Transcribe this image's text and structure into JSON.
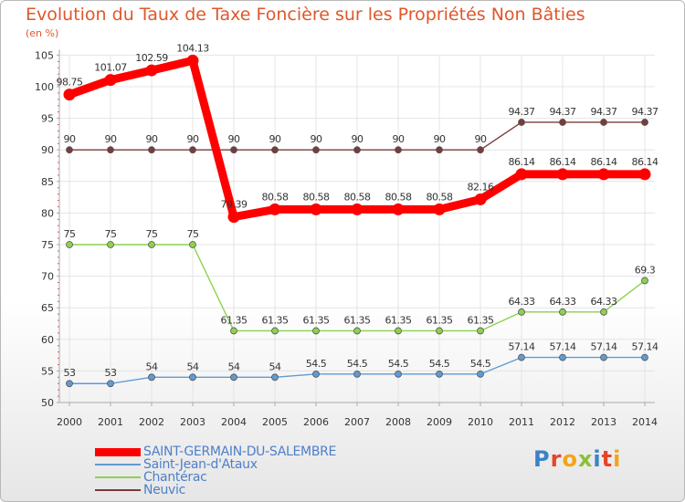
{
  "title": "Evolution du Taux de Taxe Foncière sur les Propriétés Non Bâties",
  "subtitle": "(en %)",
  "logo": {
    "letters": [
      "P",
      "r",
      "o",
      "x",
      "i",
      "t",
      "i"
    ],
    "colors": [
      "#3b83c6",
      "#e2462b",
      "#f2a51a",
      "#8cbf3a",
      "#3b83c6",
      "#e2462b",
      "#f2a51a"
    ]
  },
  "chart_data": {
    "type": "line",
    "title": "Evolution du Taux de Taxe Foncière sur les Propriétés Non Bâties",
    "ylabel": "(en %)",
    "ylim": [
      50,
      105
    ],
    "yticks": [
      50,
      55,
      60,
      65,
      70,
      75,
      80,
      85,
      90,
      95,
      100,
      105
    ],
    "x": [
      "2000",
      "2001",
      "2002",
      "2003",
      "2004",
      "2005",
      "2006",
      "2007",
      "2008",
      "2009",
      "2010",
      "2011",
      "2012",
      "2013",
      "2014"
    ],
    "series": [
      {
        "name": "Neuvic",
        "color": "#7a3b3b",
        "line_width": "thin",
        "values": [
          90,
          90,
          90,
          90,
          90,
          90,
          90,
          90,
          90,
          90,
          90,
          94.37,
          94.37,
          94.37,
          94.37
        ],
        "labels": [
          "90",
          "90",
          "90",
          "90",
          "90",
          "90",
          "90",
          "90",
          "90",
          "90",
          "90",
          "94.37",
          "94.37",
          "94.37",
          "94.37"
        ]
      },
      {
        "name": "Chantérac",
        "color": "#8ed14f",
        "line_width": "thin",
        "values": [
          75,
          75,
          75,
          75,
          61.35,
          61.35,
          61.35,
          61.35,
          61.35,
          61.35,
          61.35,
          64.33,
          64.33,
          64.33,
          69.3
        ],
        "labels": [
          "75",
          "75",
          "75",
          "75",
          "61.35",
          "61.35",
          "61.35",
          "61.35",
          "61.35",
          "61.35",
          "61.35",
          "64.33",
          "64.33",
          "64.33",
          "69.3"
        ]
      },
      {
        "name": "Saint-Jean-d'Ataux",
        "color": "#5f9bd3",
        "line_width": "thin",
        "values": [
          53,
          53,
          54,
          54,
          54,
          54,
          54.5,
          54.5,
          54.5,
          54.5,
          54.5,
          57.14,
          57.14,
          57.14,
          57.14
        ],
        "labels": [
          "53",
          "53",
          "54",
          "54",
          "54",
          "54",
          "54.5",
          "54.5",
          "54.5",
          "54.5",
          "54.5",
          "57.14",
          "57.14",
          "57.14",
          "57.14"
        ]
      },
      {
        "name": "SAINT-GERMAIN-DU-SALEMBRE",
        "color": "#ff0000",
        "line_width": "thick",
        "values": [
          98.75,
          101.07,
          102.59,
          104.13,
          79.39,
          80.58,
          80.58,
          80.58,
          80.58,
          80.58,
          82.16,
          86.14,
          86.14,
          86.14,
          86.14
        ],
        "labels": [
          "98.75",
          "101.07",
          "102.59",
          "104.13",
          "79.39",
          "80.58",
          "80.58",
          "80.58",
          "80.58",
          "80.58",
          "82.16",
          "86.14",
          "86.14",
          "86.14",
          "86.14"
        ]
      }
    ],
    "legend": {
      "placement": "bottom-left",
      "order": [
        "SAINT-GERMAIN-DU-SALEMBRE",
        "Saint-Jean-d'Ataux",
        "Chantérac",
        "Neuvic"
      ]
    }
  }
}
